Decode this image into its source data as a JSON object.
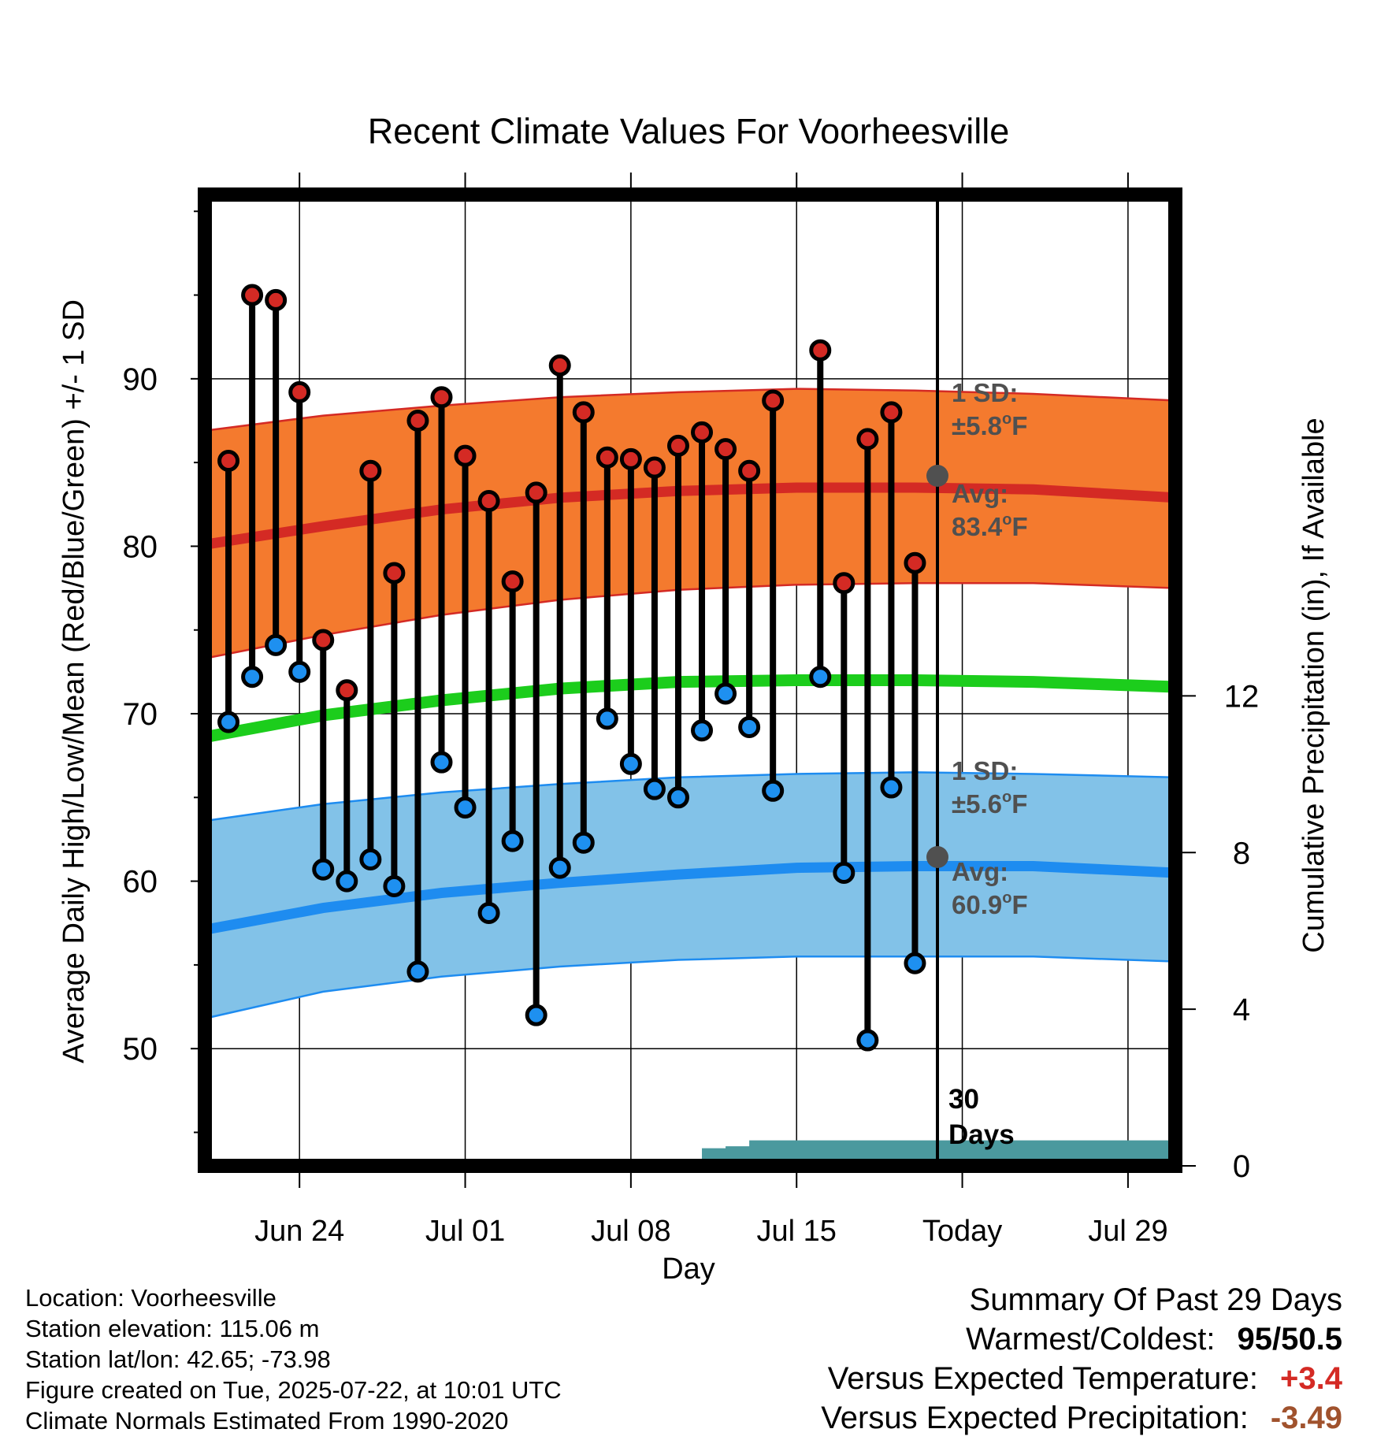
{
  "chart_data": {
    "type": "line",
    "title": "Recent Climate Values For Voorheesville",
    "xlabel": "Day",
    "ylabel": "Average Daily High/Low/Mean (Red/Blue/Green) +/- 1 SD",
    "y2label": "Cumulative Precipitation (in), If Available",
    "x_ticks": [
      "Jun 24",
      "Jul 01",
      "Jul 08",
      "Jul 15",
      "Today",
      "Jul 29"
    ],
    "y_ticks": [
      "50",
      "60",
      "70",
      "80",
      "90"
    ],
    "y2_ticks": [
      "0",
      "4",
      "8",
      "12"
    ],
    "ylim": [
      43,
      101
    ],
    "y2lim": [
      0,
      24.8
    ],
    "grid": true,
    "x": [
      "Jun 21",
      "Jun 22",
      "Jun 23",
      "Jun 24",
      "Jun 25",
      "Jun 26",
      "Jun 27",
      "Jun 28",
      "Jun 29",
      "Jun 30",
      "Jul 01",
      "Jul 02",
      "Jul 03",
      "Jul 04",
      "Jul 05",
      "Jul 06",
      "Jul 07",
      "Jul 08",
      "Jul 09",
      "Jul 10",
      "Jul 11",
      "Jul 12",
      "Jul 13",
      "Jul 14",
      "Jul 15",
      "Jul 16",
      "Jul 17",
      "Jul 18",
      "Jul 19",
      "Jul 20",
      "Jul 21",
      "Jul 22",
      "Jul 23",
      "Jul 24",
      "Jul 25",
      "Jul 26",
      "Jul 27",
      "Jul 28",
      "Jul 29",
      "Jul 30",
      "Jul 31"
    ],
    "x_range": [
      "Jun 20",
      "Jul 31"
    ],
    "today": "Jul 22",
    "highs": [
      {
        "date": "Jun 21",
        "value": 85.1
      },
      {
        "date": "Jun 22",
        "value": 95.0
      },
      {
        "date": "Jun 23",
        "value": 94.7
      },
      {
        "date": "Jun 24",
        "value": 89.2
      },
      {
        "date": "Jun 25",
        "value": 74.4
      },
      {
        "date": "Jun 26",
        "value": 71.4
      },
      {
        "date": "Jun 27",
        "value": 84.5
      },
      {
        "date": "Jun 28",
        "value": 78.4
      },
      {
        "date": "Jun 29",
        "value": 87.5
      },
      {
        "date": "Jun 30",
        "value": 88.9
      },
      {
        "date": "Jul 01",
        "value": 85.4
      },
      {
        "date": "Jul 02",
        "value": 82.7
      },
      {
        "date": "Jul 03",
        "value": 77.9
      },
      {
        "date": "Jul 04",
        "value": 83.2
      },
      {
        "date": "Jul 05",
        "value": 90.8
      },
      {
        "date": "Jul 06",
        "value": 88.0
      },
      {
        "date": "Jul 07",
        "value": 85.3
      },
      {
        "date": "Jul 08",
        "value": 85.2
      },
      {
        "date": "Jul 09",
        "value": 84.7
      },
      {
        "date": "Jul 10",
        "value": 86.0
      },
      {
        "date": "Jul 11",
        "value": 86.8
      },
      {
        "date": "Jul 12",
        "value": 85.8
      },
      {
        "date": "Jul 13",
        "value": 84.5
      },
      {
        "date": "Jul 14",
        "value": 88.7
      },
      {
        "date": "Jul 16",
        "value": 91.7
      },
      {
        "date": "Jul 17",
        "value": 77.8
      },
      {
        "date": "Jul 18",
        "value": 86.4
      },
      {
        "date": "Jul 19",
        "value": 88.0
      },
      {
        "date": "Jul 20",
        "value": 79.0
      }
    ],
    "lows": [
      {
        "date": "Jun 21",
        "value": 69.5
      },
      {
        "date": "Jun 22",
        "value": 72.2
      },
      {
        "date": "Jun 23",
        "value": 74.1
      },
      {
        "date": "Jun 24",
        "value": 72.5
      },
      {
        "date": "Jun 25",
        "value": 60.7
      },
      {
        "date": "Jun 26",
        "value": 60.0
      },
      {
        "date": "Jun 27",
        "value": 61.3
      },
      {
        "date": "Jun 28",
        "value": 59.7
      },
      {
        "date": "Jun 29",
        "value": 54.6
      },
      {
        "date": "Jun 30",
        "value": 67.1
      },
      {
        "date": "Jul 01",
        "value": 64.4
      },
      {
        "date": "Jul 02",
        "value": 58.1
      },
      {
        "date": "Jul 03",
        "value": 62.4
      },
      {
        "date": "Jul 04",
        "value": 52.0
      },
      {
        "date": "Jul 05",
        "value": 60.8
      },
      {
        "date": "Jul 06",
        "value": 62.3
      },
      {
        "date": "Jul 07",
        "value": 69.7
      },
      {
        "date": "Jul 08",
        "value": 67.0
      },
      {
        "date": "Jul 09",
        "value": 65.5
      },
      {
        "date": "Jul 10",
        "value": 65.0
      },
      {
        "date": "Jul 11",
        "value": 69.0
      },
      {
        "date": "Jul 12",
        "value": 71.2
      },
      {
        "date": "Jul 13",
        "value": 69.2
      },
      {
        "date": "Jul 14",
        "value": 65.4
      },
      {
        "date": "Jul 16",
        "value": 72.2
      },
      {
        "date": "Jul 17",
        "value": 60.5
      },
      {
        "date": "Jul 18",
        "value": 50.5
      },
      {
        "date": "Jul 19",
        "value": 65.6
      },
      {
        "date": "Jul 20",
        "value": 55.1
      }
    ],
    "normal_high": {
      "dates": [
        "Jun 20",
        "Jun 25",
        "Jun 30",
        "Jul 05",
        "Jul 10",
        "Jul 15",
        "Jul 20",
        "Jul 25",
        "Jul 31"
      ],
      "avg": [
        80.1,
        81.2,
        82.2,
        82.9,
        83.3,
        83.5,
        83.5,
        83.4,
        82.9
      ],
      "sd_upper": [
        86.9,
        87.8,
        88.4,
        88.9,
        89.2,
        89.4,
        89.3,
        89.1,
        88.7
      ],
      "sd_lower": [
        73.3,
        74.7,
        75.9,
        76.8,
        77.4,
        77.7,
        77.8,
        77.8,
        77.5
      ]
    },
    "normal_low": {
      "dates": [
        "Jun 20",
        "Jun 25",
        "Jun 30",
        "Jul 05",
        "Jul 10",
        "Jul 15",
        "Jul 20",
        "Jul 25",
        "Jul 31"
      ],
      "avg": [
        57.1,
        58.4,
        59.3,
        59.9,
        60.4,
        60.8,
        60.9,
        60.9,
        60.5
      ],
      "sd_upper": [
        63.6,
        64.6,
        65.3,
        65.8,
        66.2,
        66.4,
        66.5,
        66.4,
        66.2
      ],
      "sd_lower": [
        51.8,
        53.4,
        54.3,
        54.9,
        55.3,
        55.5,
        55.5,
        55.5,
        55.2
      ]
    },
    "normal_mean": {
      "dates": [
        "Jun 20",
        "Jun 25",
        "Jun 30",
        "Jul 05",
        "Jul 10",
        "Jul 15",
        "Jul 20",
        "Jul 25",
        "Jul 31"
      ],
      "values": [
        68.6,
        69.9,
        70.8,
        71.5,
        71.9,
        72.0,
        72.0,
        71.9,
        71.6
      ]
    },
    "precip_cumulative": {
      "dates": [
        "Jun 20",
        "Jul 07",
        "Jul 10",
        "Jul 11",
        "Jul 12",
        "Jul 13",
        "Jul 14",
        "Jul 31"
      ],
      "values": [
        0.0,
        0.0,
        0.05,
        0.45,
        0.5,
        0.65,
        0.65,
        0.7
      ]
    },
    "annotations": {
      "high_sd": "1 SD:",
      "high_sd_value": "±5.8",
      "high_avg": "Avg:",
      "high_avg_value": "83.4",
      "low_sd": "1 SD:",
      "low_sd_value": "±5.6",
      "low_avg": "Avg:",
      "low_avg_value": "60.9",
      "unit_sup": "o",
      "unit": "F",
      "window_count": "30",
      "window_label": "Days"
    }
  },
  "colors": {
    "high_band": "#F47A2E",
    "high_line": "#D42A24",
    "low_band": "#82C2E8",
    "low_line": "#1E8CF0",
    "mean_line": "#1CCD1C",
    "precip": "#4B999E",
    "annotation": "#505050",
    "high_dot": "#D42A24",
    "low_dot": "#1E90F0",
    "temp_anomaly": "#D42A24",
    "precip_anomaly": "#A0522D"
  },
  "info": {
    "location": "Location: Voorheesville",
    "elevation": "Station elevation: 115.06 m",
    "latlon": "Station lat/lon: 42.65; -73.98",
    "created": "Figure created on Tue, 2025-07-22, at 10:01 UTC",
    "normals": "Climate Normals Estimated From 1990-2020"
  },
  "summary": {
    "title": "Summary Of Past 29 Days",
    "warm_cold_label": "Warmest/Coldest:",
    "warm_cold_value": "95/50.5",
    "temp_label": "Versus Expected Temperature:",
    "temp_value": "+3.4",
    "precip_label": "Versus Expected Precipitation:",
    "precip_value": "-3.49"
  }
}
